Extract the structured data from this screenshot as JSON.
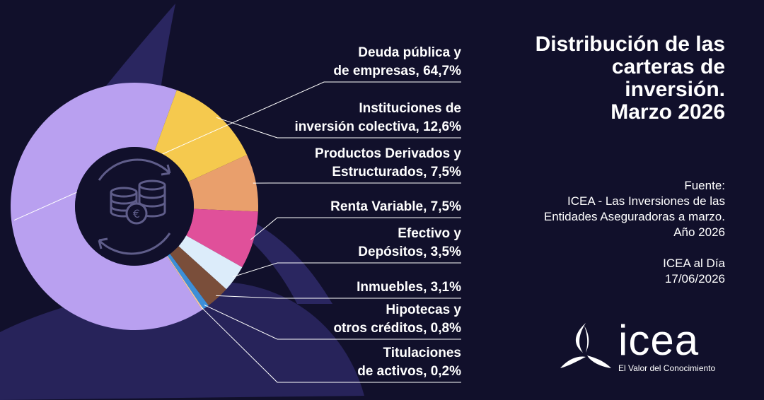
{
  "title_lines": [
    "Distribución de las",
    "carteras de",
    "inversión.",
    "Marzo 2026"
  ],
  "source": {
    "heading": "Fuente:",
    "lines": [
      "ICEA - Las Inversiones de las",
      "Entidades Aseguradoras a marzo.",
      "Año 2026"
    ],
    "pub_name": "ICEA al Día",
    "pub_date": "17/06/2026"
  },
  "logo": {
    "wordmark": "icea",
    "tagline": "El Valor del Conocimiento",
    "icon": "icea-tri-swoosh-icon"
  },
  "center_icon": "euro-coins-cycle-icon",
  "chart_data": {
    "type": "pie",
    "title": "Distribución de las carteras de inversión. Marzo 2026",
    "series": [
      {
        "label_lines": [
          "Deuda pública y",
          "de empresas, 64,7%"
        ],
        "value": 64.7,
        "color": "#b9a0f0"
      },
      {
        "label_lines": [
          "Instituciones de",
          "inversión colectiva, 12,6%"
        ],
        "value": 12.6,
        "color": "#f5c94e"
      },
      {
        "label_lines": [
          "Productos Derivados y",
          "Estructurados, 7,5%"
        ],
        "value": 7.5,
        "color": "#e99f6c"
      },
      {
        "label_lines": [
          "Renta Variable, 7,5%"
        ],
        "value": 7.5,
        "color": "#e0509a"
      },
      {
        "label_lines": [
          "Efectivo y",
          "Depósitos, 3,5%"
        ],
        "value": 3.5,
        "color": "#dcecfa"
      },
      {
        "label_lines": [
          "Inmuebles, 3,1%"
        ],
        "value": 3.1,
        "color": "#7a4e3a"
      },
      {
        "label_lines": [
          "Hipotecas y",
          "otros créditos, 0,8%"
        ],
        "value": 0.8,
        "color": "#3d8fd8"
      },
      {
        "label_lines": [
          "Titulaciones",
          "de activos, 0,2%"
        ],
        "value": 0.2,
        "color": "#f2c6a4"
      }
    ]
  }
}
